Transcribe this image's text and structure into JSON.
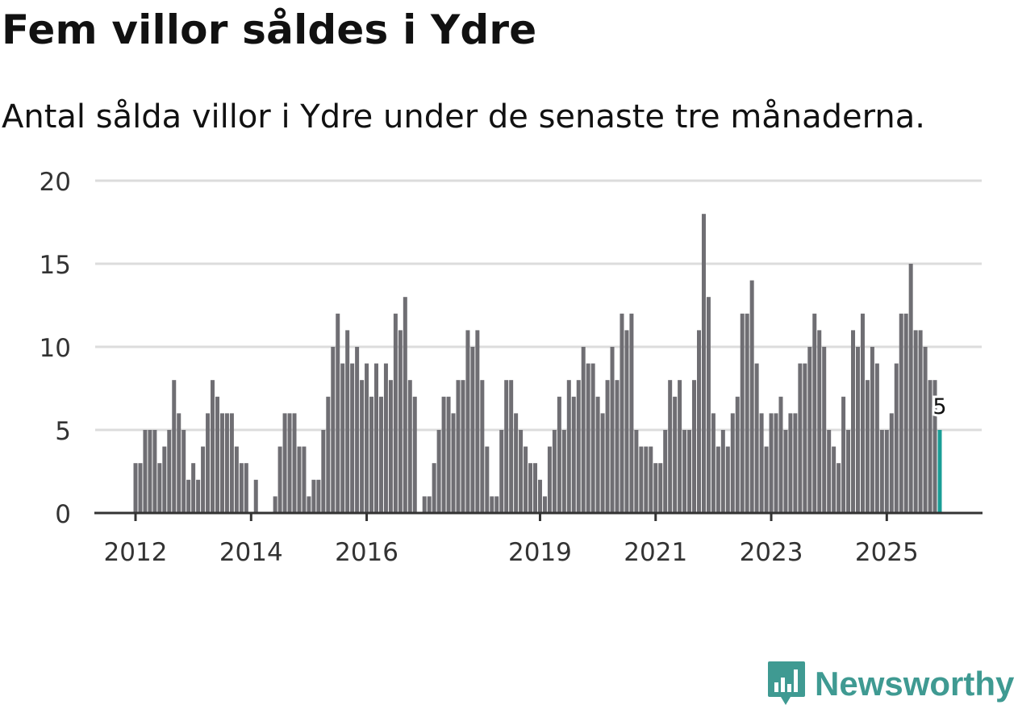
{
  "title": "Fem villor såldes i Ydre",
  "subtitle": "Antal sålda villor i Ydre under de senaste tre månaderna.",
  "brand": "Newsworthy",
  "colors": {
    "bar": "#6f6e73",
    "highlight": "#1a9e96",
    "brand": "#3f9a92"
  },
  "chart_data": {
    "type": "bar",
    "title": "Fem villor såldes i Ydre",
    "xlabel": "",
    "ylabel": "",
    "ylim": [
      0,
      20
    ],
    "yticks": [
      0,
      5,
      10,
      15,
      20
    ],
    "grid": true,
    "start": "2012-01",
    "frequency": "monthly",
    "xticks": [
      "2012",
      "2014",
      "2016",
      "2019",
      "2021",
      "2023",
      "2025"
    ],
    "highlight_label": "5",
    "values": [
      3,
      3,
      5,
      5,
      5,
      3,
      4,
      5,
      8,
      6,
      5,
      2,
      3,
      2,
      4,
      6,
      8,
      7,
      6,
      6,
      6,
      4,
      3,
      3,
      0,
      2,
      0,
      0,
      0,
      1,
      4,
      6,
      6,
      6,
      4,
      4,
      1,
      2,
      2,
      5,
      7,
      10,
      12,
      9,
      11,
      9,
      10,
      8,
      9,
      7,
      9,
      7,
      9,
      8,
      12,
      11,
      13,
      8,
      7,
      0,
      1,
      1,
      3,
      5,
      7,
      7,
      6,
      8,
      8,
      11,
      10,
      11,
      8,
      4,
      1,
      1,
      5,
      8,
      8,
      6,
      5,
      4,
      3,
      3,
      2,
      1,
      4,
      5,
      7,
      5,
      8,
      7,
      8,
      10,
      9,
      9,
      7,
      6,
      8,
      10,
      8,
      12,
      11,
      12,
      5,
      4,
      4,
      4,
      3,
      3,
      5,
      8,
      7,
      8,
      5,
      5,
      8,
      11,
      18,
      13,
      6,
      4,
      5,
      4,
      6,
      7,
      12,
      12,
      14,
      9,
      6,
      4,
      6,
      6,
      7,
      5,
      6,
      6,
      9,
      9,
      10,
      12,
      11,
      10,
      5,
      4,
      3,
      7,
      5,
      11,
      10,
      12,
      8,
      10,
      9,
      5,
      5,
      6,
      9,
      12,
      12,
      15,
      11,
      11,
      10,
      8,
      8,
      5
    ]
  }
}
